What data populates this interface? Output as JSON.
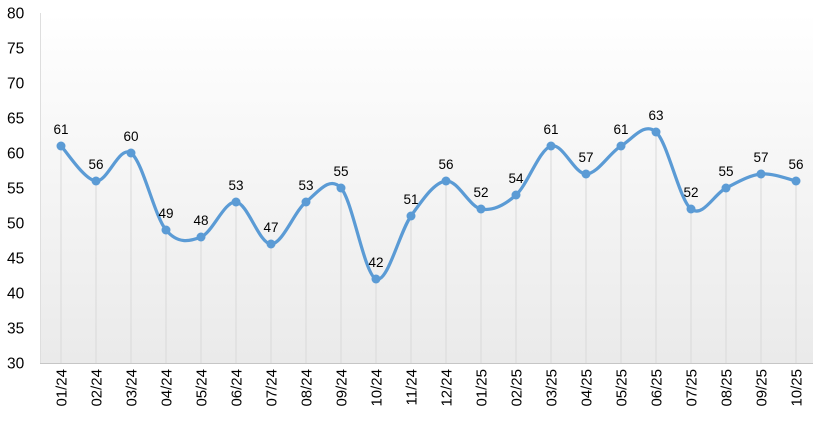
{
  "chart_data": {
    "type": "line",
    "title": "",
    "xlabel": "",
    "ylabel": "",
    "categories": [
      "01/24",
      "02/24",
      "03/24",
      "04/24",
      "05/24",
      "06/24",
      "07/24",
      "08/24",
      "09/24",
      "10/24",
      "11/24",
      "12/24",
      "01/25",
      "02/25",
      "03/25",
      "04/25",
      "05/25",
      "06/25",
      "07/25",
      "08/25",
      "09/25",
      "10/25"
    ],
    "series": [
      {
        "name": "values",
        "values": [
          61,
          56,
          60,
          49,
          48,
          53,
          47,
          53,
          55,
          42,
          51,
          56,
          52,
          54,
          61,
          57,
          61,
          63,
          52,
          55,
          57,
          56
        ]
      }
    ],
    "ylim": [
      30,
      80
    ],
    "y_ticks": [
      30,
      35,
      40,
      45,
      50,
      55,
      60,
      65,
      70,
      75,
      80
    ],
    "data_labels_visible": true,
    "legend_position": "none",
    "grid_style": "vertical-drop-lines-only",
    "line_smooth": true,
    "colors": {
      "line": "#5b9bd5",
      "marker": "#5b9bd5",
      "data_label_text": "#000000",
      "axis_label_text": "#000000",
      "drop_line": "#d9d9d9",
      "axis_line": "#c6c6c6",
      "plot_bg_top": "#ffffff",
      "plot_bg_bottom": "#eaeaea",
      "page_bg": "#ffffff"
    }
  }
}
